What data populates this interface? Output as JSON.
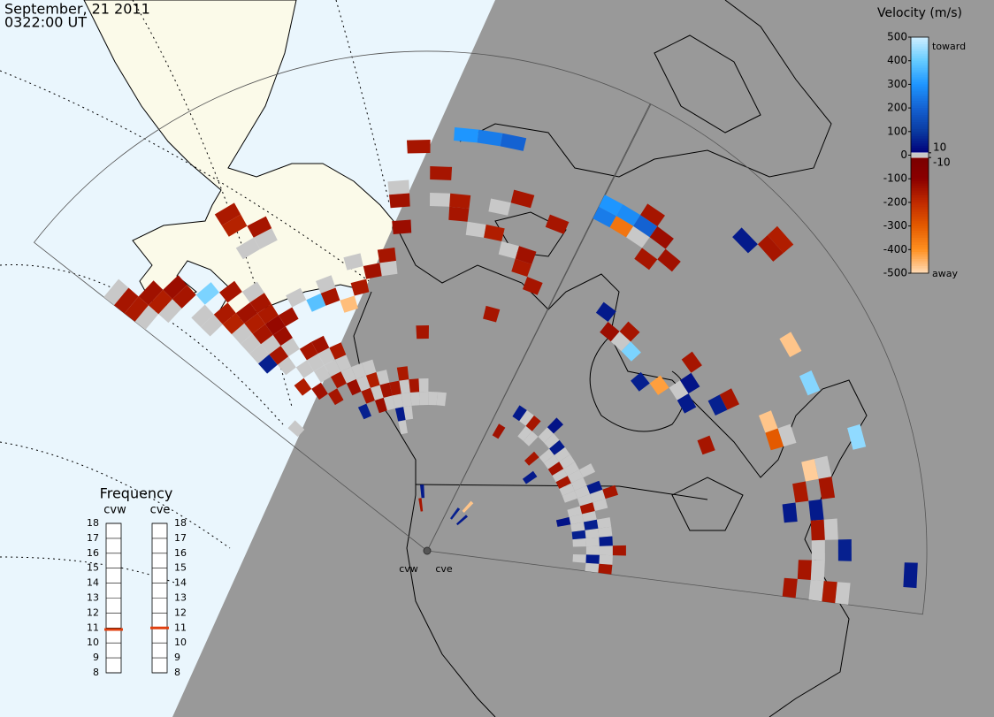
{
  "header": {
    "date": "September, 21 2011",
    "time": "0322:00 UT"
  },
  "colorbar": {
    "title": "Velocity (m/s)",
    "lim": [
      -500,
      500
    ],
    "ticks": [
      500,
      400,
      300,
      200,
      100,
      0,
      -100,
      -200,
      -300,
      -400,
      -500
    ],
    "inner_ticks": [
      10,
      -10
    ],
    "toward": "toward",
    "away": "away",
    "ground_scatter_color": "#c8c8c8",
    "stops": [
      {
        "value": 500,
        "color": "#cfeeff"
      },
      {
        "value": 400,
        "color": "#66ccff"
      },
      {
        "value": 300,
        "color": "#1e96ff"
      },
      {
        "value": 200,
        "color": "#1462d2"
      },
      {
        "value": 100,
        "color": "#0a3aa0"
      },
      {
        "value": 10,
        "color": "#00007a"
      },
      {
        "value": -10,
        "color": "#7a0000"
      },
      {
        "value": -100,
        "color": "#8b0000"
      },
      {
        "value": -200,
        "color": "#c02a00"
      },
      {
        "value": -300,
        "color": "#e45a00"
      },
      {
        "value": -400,
        "color": "#ff9020"
      },
      {
        "value": -500,
        "color": "#ffdcb8"
      }
    ]
  },
  "frequency": {
    "title": "Frequency",
    "lim": [
      8,
      18
    ],
    "ticks": [
      8,
      9,
      10,
      11,
      12,
      13,
      14,
      15,
      16,
      17,
      18
    ],
    "marker_color": "#e04010",
    "radars": [
      {
        "name": "cvw",
        "value": 10.9
      },
      {
        "name": "cve",
        "value": 11.0
      }
    ]
  },
  "radars": [
    {
      "name": "cvw",
      "cells": [
        [
          23,
          28,
          -160
        ],
        [
          23,
          29,
          -150
        ],
        [
          22,
          27,
          -170
        ],
        [
          22,
          28,
          -140
        ],
        [
          21,
          27,
          -130
        ],
        [
          21,
          26,
          -150
        ],
        [
          20,
          23,
          -160
        ],
        [
          20,
          22,
          -180
        ],
        [
          19,
          20,
          -150
        ],
        [
          19,
          21,
          -170
        ],
        [
          19,
          22,
          -140
        ],
        [
          18,
          20,
          -120
        ],
        [
          18,
          21,
          -160
        ],
        [
          18,
          22,
          -150
        ],
        [
          17,
          20,
          -140
        ],
        [
          17,
          28,
          -180
        ],
        [
          17,
          29,
          -160
        ],
        [
          16,
          27,
          -150
        ],
        [
          20,
          25,
          420
        ],
        [
          19,
          24,
          -150
        ],
        [
          18,
          19,
          -130
        ],
        [
          17,
          17,
          -150
        ],
        [
          16,
          17,
          -140
        ],
        [
          15,
          16,
          -160
        ],
        [
          16,
          14,
          -150
        ],
        [
          15,
          13,
          -130
        ],
        [
          14,
          12,
          -150
        ],
        [
          13,
          13,
          -170
        ],
        [
          12,
          12,
          -140
        ],
        [
          11,
          12,
          -150
        ],
        [
          11,
          10,
          50
        ],
        [
          10,
          13,
          -160
        ],
        [
          9,
          12,
          -150
        ],
        [
          13,
          11,
          -130
        ],
        [
          15,
          11,
          60
        ],
        [
          17,
          13,
          -150
        ],
        [
          18,
          14,
          -140
        ],
        [
          19,
          15,
          -170
        ],
        [
          20,
          18,
          60
        ],
        [
          19,
          18,
          -150
        ],
        [
          14,
          20,
          -150
        ],
        [
          12,
          20,
          -160
        ],
        [
          11,
          21,
          -140
        ],
        [
          10,
          22,
          -150
        ],
        [
          9,
          24,
          -130
        ],
        [
          7,
          28,
          -150
        ],
        [
          6,
          26,
          -160
        ],
        [
          6,
          25,
          -150
        ],
        [
          5,
          31,
          250
        ],
        [
          4,
          31,
          200
        ],
        [
          6,
          31,
          300
        ],
        [
          8,
          30,
          -150
        ],
        [
          9,
          26,
          -140
        ],
        [
          3,
          27,
          -150
        ],
        [
          2,
          22,
          -160
        ],
        [
          1,
          21,
          -150
        ],
        [
          2,
          23,
          -140
        ],
        [
          1,
          26,
          -150
        ],
        [
          4,
          24,
          -170
        ],
        [
          3,
          18,
          -150
        ],
        [
          15,
          20,
          380
        ],
        [
          13,
          19,
          -460
        ],
        [
          8,
          16,
          -150
        ],
        [
          10,
          3,
          -150
        ],
        [
          9,
          4,
          50
        ]
      ],
      "ground_scatter": [
        [
          23,
          27
        ],
        [
          22,
          26
        ],
        [
          21,
          24
        ],
        [
          20,
          21
        ],
        [
          19,
          19
        ],
        [
          18,
          18
        ],
        [
          17,
          16
        ],
        [
          16,
          16
        ],
        [
          16,
          15
        ],
        [
          15,
          15
        ],
        [
          15,
          14
        ],
        [
          14,
          14
        ],
        [
          14,
          13
        ],
        [
          13,
          12
        ],
        [
          12,
          11
        ],
        [
          12,
          13
        ],
        [
          11,
          11
        ],
        [
          10,
          11
        ],
        [
          10,
          12
        ],
        [
          9,
          11
        ],
        [
          8,
          11
        ],
        [
          8,
          12
        ],
        [
          7,
          11
        ],
        [
          6,
          11
        ],
        [
          13,
          14
        ],
        [
          17,
          15
        ],
        [
          18,
          16
        ],
        [
          19,
          17
        ],
        [
          20,
          20
        ],
        [
          21,
          23
        ],
        [
          18,
          23
        ],
        [
          16,
          21
        ],
        [
          14,
          21
        ],
        [
          12,
          22
        ],
        [
          10,
          21
        ],
        [
          5,
          24
        ],
        [
          4,
          26
        ],
        [
          3,
          23
        ],
        [
          22,
          13
        ],
        [
          23,
          30
        ],
        [
          9,
          27
        ],
        [
          7,
          26
        ],
        [
          17,
          26
        ],
        [
          16,
          26
        ],
        [
          20,
          19
        ],
        [
          11,
          9
        ],
        [
          10,
          10
        ]
      ]
    },
    {
      "name": "cve",
      "cells": [
        [
          23,
          28,
          250
        ],
        [
          23,
          29,
          300
        ],
        [
          22,
          29,
          280
        ],
        [
          21,
          29,
          200
        ],
        [
          22,
          28,
          -350
        ],
        [
          20,
          29,
          -130
        ],
        [
          21,
          30,
          -150
        ],
        [
          20,
          27,
          -150
        ],
        [
          19,
          28,
          -140
        ],
        [
          16,
          34,
          -150
        ],
        [
          16,
          35,
          -170
        ],
        [
          17,
          33,
          50
        ],
        [
          1,
          28,
          -150
        ],
        [
          0,
          30,
          -160
        ],
        [
          5,
          30,
          -150
        ],
        [
          4,
          29,
          50
        ],
        [
          6,
          29,
          -480
        ],
        [
          8,
          27,
          -300
        ],
        [
          9,
          27,
          -470
        ],
        [
          11,
          24,
          60
        ],
        [
          11,
          25,
          -150
        ],
        [
          13,
          23,
          40
        ],
        [
          14,
          21,
          -420
        ],
        [
          10,
          31,
          430
        ],
        [
          12,
          31,
          -470
        ],
        [
          1,
          36,
          50
        ],
        [
          7,
          33,
          440
        ],
        [
          2,
          31,
          60
        ],
        [
          3,
          29,
          -150
        ],
        [
          5,
          28,
          -160
        ],
        [
          0,
          27,
          -150
        ],
        [
          4,
          27,
          50
        ],
        [
          18,
          22,
          -150
        ],
        [
          17,
          21,
          420
        ],
        [
          19,
          21,
          -130
        ],
        [
          20,
          22,
          50
        ],
        [
          15,
          20,
          60
        ],
        [
          14,
          24,
          -150
        ],
        [
          12,
          22,
          50
        ],
        [
          9,
          22,
          -150
        ],
        [
          2,
          14,
          -150
        ],
        [
          3,
          13,
          50
        ],
        [
          5,
          12,
          60
        ],
        [
          7,
          12,
          -150
        ],
        [
          9,
          13,
          50
        ],
        [
          11,
          11,
          -150
        ],
        [
          13,
          11,
          -140
        ],
        [
          15,
          12,
          50
        ],
        [
          17,
          13,
          40
        ],
        [
          19,
          12,
          -150
        ],
        [
          21,
          12,
          50
        ],
        [
          22,
          10,
          -140
        ],
        [
          8,
          14,
          -150
        ],
        [
          6,
          10,
          40
        ],
        [
          4,
          11,
          60
        ],
        [
          14,
          9,
          50
        ],
        [
          16,
          10,
          -150
        ],
        [
          0,
          13,
          -150
        ],
        [
          1,
          12,
          50
        ],
        [
          20,
          3,
          60
        ],
        [
          18,
          4,
          -470
        ],
        [
          16,
          3,
          50
        ]
      ],
      "ground_scatter": [
        [
          0,
          12
        ],
        [
          1,
          11
        ],
        [
          1,
          13
        ],
        [
          2,
          12
        ],
        [
          2,
          13
        ],
        [
          3,
          12
        ],
        [
          3,
          11
        ],
        [
          4,
          12
        ],
        [
          4,
          13
        ],
        [
          5,
          11
        ],
        [
          5,
          13
        ],
        [
          6,
          12
        ],
        [
          6,
          11
        ],
        [
          7,
          11
        ],
        [
          7,
          13
        ],
        [
          8,
          12
        ],
        [
          8,
          13
        ],
        [
          9,
          12
        ],
        [
          9,
          11
        ],
        [
          10,
          12
        ],
        [
          10,
          11
        ],
        [
          11,
          12
        ],
        [
          11,
          13
        ],
        [
          12,
          11
        ],
        [
          12,
          12
        ],
        [
          13,
          12
        ],
        [
          14,
          11
        ],
        [
          14,
          12
        ],
        [
          15,
          11
        ],
        [
          16,
          12
        ],
        [
          17,
          12
        ],
        [
          18,
          11
        ],
        [
          19,
          11
        ],
        [
          20,
          12
        ],
        [
          0,
          29
        ],
        [
          1,
          29
        ],
        [
          0,
          31
        ],
        [
          2,
          29
        ],
        [
          3,
          30
        ],
        [
          6,
          30
        ],
        [
          8,
          28
        ],
        [
          18,
          21
        ],
        [
          21,
          28
        ],
        [
          13,
          22
        ]
      ]
    }
  ]
}
